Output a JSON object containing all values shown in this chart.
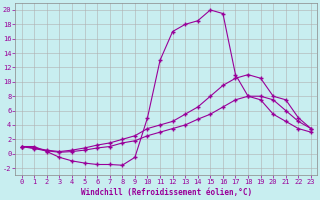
{
  "xlabel": "Windchill (Refroidissement éolien,°C)",
  "background_color": "#c8eef0",
  "line_color": "#990099",
  "xlim": [
    -0.5,
    23.5
  ],
  "ylim": [
    -3.0,
    21.0
  ],
  "yticks": [
    -2,
    0,
    2,
    4,
    6,
    8,
    10,
    12,
    14,
    16,
    18,
    20
  ],
  "xticks": [
    0,
    1,
    2,
    3,
    4,
    5,
    6,
    7,
    8,
    9,
    10,
    11,
    12,
    13,
    14,
    15,
    16,
    17,
    18,
    19,
    20,
    21,
    22,
    23
  ],
  "line1_x": [
    0,
    1,
    2,
    3,
    4,
    5,
    6,
    7,
    8,
    9,
    10,
    11,
    12,
    13,
    14,
    15,
    16,
    17,
    18,
    19,
    20,
    21,
    22,
    23
  ],
  "line1_y": [
    1.0,
    1.0,
    0.3,
    -0.5,
    -1.0,
    -1.3,
    -1.5,
    -1.5,
    -1.6,
    -0.5,
    5.0,
    13.0,
    17.0,
    18.0,
    18.5,
    20.0,
    19.5,
    11.0,
    8.0,
    7.5,
    5.5,
    4.5,
    3.5,
    3.0
  ],
  "line2_x": [
    0,
    1,
    2,
    3,
    4,
    5,
    6,
    7,
    8,
    9,
    10,
    11,
    12,
    13,
    14,
    15,
    16,
    17,
    18,
    19,
    20,
    21,
    22,
    23
  ],
  "line2_y": [
    1.0,
    0.8,
    0.5,
    0.3,
    0.5,
    0.8,
    1.2,
    1.5,
    2.0,
    2.5,
    3.5,
    4.0,
    4.5,
    5.5,
    6.5,
    8.0,
    9.5,
    10.5,
    11.0,
    10.5,
    8.0,
    7.5,
    5.0,
    3.5
  ],
  "line3_x": [
    0,
    1,
    2,
    3,
    4,
    5,
    6,
    7,
    8,
    9,
    10,
    11,
    12,
    13,
    14,
    15,
    16,
    17,
    18,
    19,
    20,
    21,
    22,
    23
  ],
  "line3_y": [
    1.0,
    0.7,
    0.4,
    0.2,
    0.3,
    0.5,
    0.8,
    1.0,
    1.5,
    1.8,
    2.5,
    3.0,
    3.5,
    4.0,
    4.8,
    5.5,
    6.5,
    7.5,
    8.0,
    8.0,
    7.5,
    6.0,
    4.5,
    3.5
  ],
  "marker": "+",
  "markersize": 3.5,
  "linewidth": 0.8,
  "grid_color": "#b0b0b0",
  "tick_fontsize": 5,
  "label_fontsize": 5.5
}
